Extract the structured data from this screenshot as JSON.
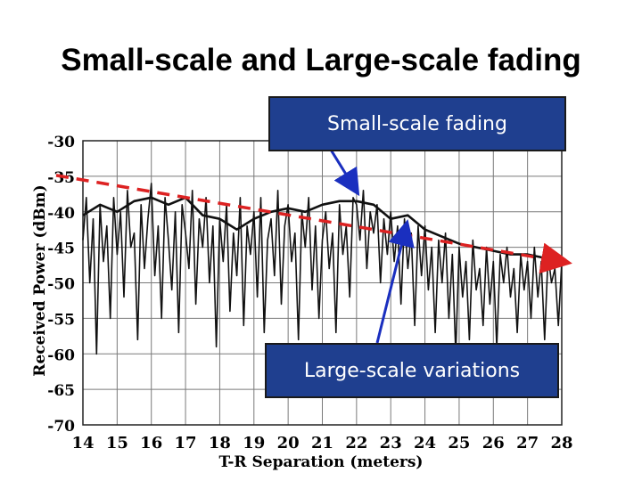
{
  "slide": {
    "title": "Small-scale and Large-scale fading"
  },
  "annotations": {
    "small_scale": "Small-scale fading",
    "large_scale": "Large-scale variations"
  },
  "colors": {
    "grid": "#7a7a7a",
    "signal": "#111111",
    "trend": "#dd2222",
    "callout_bg": "#1f3f8f",
    "arrow": "#1a2fbf"
  },
  "chart_data": {
    "type": "line",
    "xlabel": "T-R Separation (meters)",
    "ylabel": "Received Power (dBm)",
    "x_ticks": [
      "14",
      "15",
      "16",
      "17",
      "18",
      "19",
      "20",
      "21",
      "22",
      "23",
      "24",
      "25",
      "26",
      "27",
      "28"
    ],
    "y_ticks": [
      "-30",
      "-35",
      "-40",
      "-45",
      "-50",
      "-55",
      "-60",
      "-65",
      "-70"
    ],
    "xlim": [
      14,
      28
    ],
    "ylim": [
      -70,
      -30
    ],
    "grid": true,
    "series": [
      {
        "style": "raw measured signal",
        "x": [
          14.0,
          14.1,
          14.2,
          14.3,
          14.4,
          14.5,
          14.6,
          14.7,
          14.8,
          14.9,
          15.0,
          15.1,
          15.2,
          15.3,
          15.4,
          15.5,
          15.6,
          15.7,
          15.8,
          15.9,
          16.0,
          16.1,
          16.2,
          16.3,
          16.4,
          16.5,
          16.6,
          16.7,
          16.8,
          16.9,
          17.0,
          17.1,
          17.2,
          17.3,
          17.4,
          17.5,
          17.6,
          17.7,
          17.8,
          17.9,
          18.0,
          18.1,
          18.2,
          18.3,
          18.4,
          18.5,
          18.6,
          18.7,
          18.8,
          18.9,
          19.0,
          19.1,
          19.2,
          19.3,
          19.4,
          19.5,
          19.6,
          19.7,
          19.8,
          19.9,
          20.0,
          20.1,
          20.2,
          20.3,
          20.4,
          20.5,
          20.6,
          20.7,
          20.8,
          20.9,
          21.0,
          21.1,
          21.2,
          21.3,
          21.4,
          21.5,
          21.6,
          21.7,
          21.8,
          21.9,
          22.0,
          22.1,
          22.2,
          22.3,
          22.4,
          22.5,
          22.6,
          22.7,
          22.8,
          22.9,
          23.0,
          23.1,
          23.2,
          23.3,
          23.4,
          23.5,
          23.6,
          23.7,
          23.8,
          23.9,
          24.0,
          24.1,
          24.2,
          24.3,
          24.4,
          24.5,
          24.6,
          24.7,
          24.8,
          24.9,
          25.0,
          25.1,
          25.2,
          25.3,
          25.4,
          25.5,
          25.6,
          25.7,
          25.8,
          25.9,
          26.0,
          26.1,
          26.2,
          26.3,
          26.4,
          26.5,
          26.6,
          26.7,
          26.8,
          26.9,
          27.0,
          27.1,
          27.2,
          27.3,
          27.4,
          27.5,
          27.6,
          27.7,
          27.8,
          27.9,
          28.0
        ],
        "values": [
          -44,
          -38,
          -50,
          -41,
          -60,
          -39,
          -47,
          -42,
          -55,
          -38,
          -46,
          -40,
          -52,
          -37,
          -45,
          -43,
          -58,
          -39,
          -48,
          -41,
          -36,
          -49,
          -42,
          -55,
          -38,
          -44,
          -51,
          -40,
          -57,
          -39,
          -43,
          -48,
          -37,
          -53,
          -41,
          -45,
          -38,
          -50,
          -42,
          -59,
          -41,
          -47,
          -39,
          -54,
          -43,
          -49,
          -38,
          -56,
          -42,
          -46,
          -40,
          -52,
          -38,
          -57,
          -44,
          -41,
          -49,
          -37,
          -53,
          -42,
          -39,
          -47,
          -43,
          -58,
          -40,
          -45,
          -38,
          -51,
          -42,
          -55,
          -44,
          -40,
          -48,
          -43,
          -57,
          -39,
          -46,
          -42,
          -52,
          -38,
          -39,
          -44,
          -37,
          -48,
          -40,
          -43,
          -39,
          -50,
          -41,
          -46,
          -40,
          -47,
          -42,
          -53,
          -41,
          -48,
          -43,
          -56,
          -42,
          -49,
          -42,
          -51,
          -45,
          -57,
          -44,
          -50,
          -43,
          -55,
          -46,
          -60,
          -45,
          -52,
          -47,
          -58,
          -44,
          -51,
          -48,
          -56,
          -45,
          -53,
          -47,
          -59,
          -46,
          -50,
          -45,
          -52,
          -48,
          -57,
          -46,
          -51,
          -47,
          -55,
          -45,
          -52,
          -47,
          -58,
          -46,
          -50,
          -48,
          -56,
          -47
        ]
      },
      {
        "style": "local average (solid)",
        "x": [
          14,
          14.5,
          15,
          15.5,
          16,
          16.5,
          17,
          17.5,
          18,
          18.5,
          19,
          19.5,
          20,
          20.5,
          21,
          21.5,
          22,
          22.5,
          23,
          23.5,
          24,
          24.5,
          25,
          25.5,
          26,
          26.5,
          27,
          27.5,
          28
        ],
        "values": [
          -40.5,
          -39,
          -40,
          -38.5,
          -38,
          -39,
          -38,
          -40.5,
          -41,
          -42.5,
          -41,
          -40,
          -39.5,
          -40,
          -39,
          -38.5,
          -38.5,
          -39,
          -41,
          -40.5,
          -42.5,
          -43.5,
          -44.5,
          -45,
          -45.5,
          -46,
          -46,
          -46.5,
          -46.5
        ]
      },
      {
        "style": "large-scale trend (red dashed)",
        "x": [
          14,
          28
        ],
        "values": [
          -35,
          -47
        ]
      }
    ]
  }
}
